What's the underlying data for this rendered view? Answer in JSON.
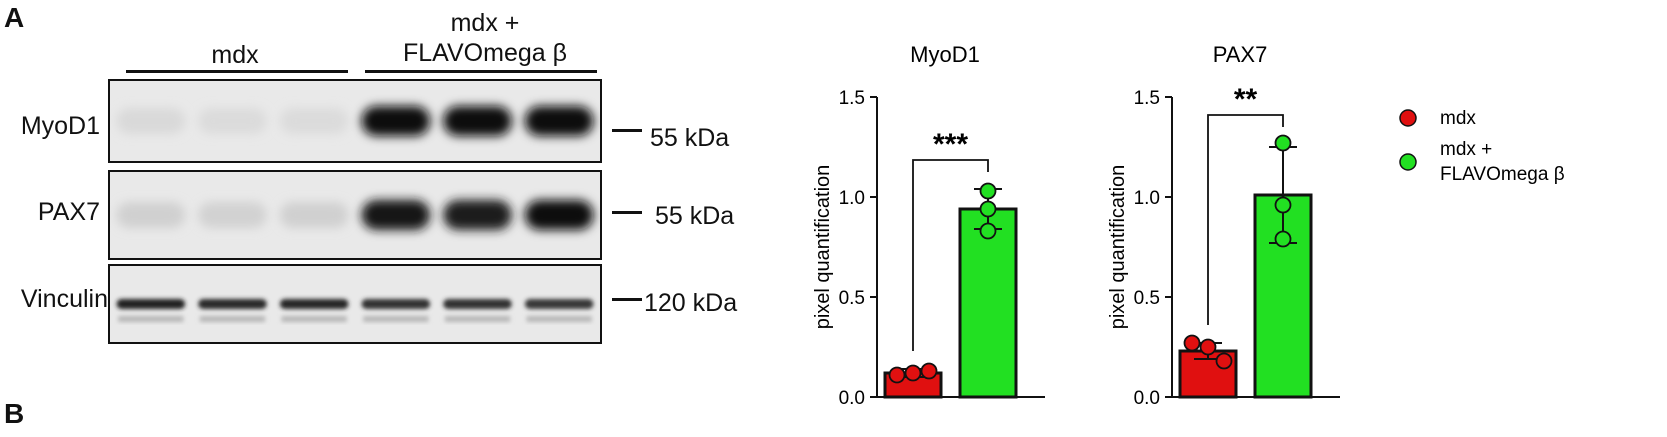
{
  "panel_labels": {
    "a": "A",
    "b": "B"
  },
  "blot": {
    "group_labels": [
      "mdx",
      "mdx +\nFLAVOmega β"
    ],
    "rows": [
      {
        "protein": "MyoD1",
        "size": "55 kDa",
        "intensity": [
          0.08,
          0.07,
          0.07,
          0.98,
          0.97,
          0.98
        ]
      },
      {
        "protein": "PAX7",
        "size": "55 kDa",
        "intensity": [
          0.12,
          0.11,
          0.12,
          0.95,
          0.93,
          0.97
        ]
      },
      {
        "protein": "Vinculin",
        "size": "120 kDa",
        "intensity": [
          0.9,
          0.85,
          0.88,
          0.82,
          0.83,
          0.8
        ]
      }
    ]
  },
  "legend": {
    "items": [
      {
        "label": "mdx",
        "color": "#e01010"
      },
      {
        "label": "mdx +\nFLAVOmega β",
        "color": "#22e022"
      }
    ]
  },
  "chart_data": [
    {
      "type": "bar",
      "title": "MyoD1",
      "ylabel": "pixel quantification",
      "ylim": [
        0,
        1.5
      ],
      "yticks": [
        "0.0",
        "0.5",
        "1.0",
        "1.5"
      ],
      "categories": [
        "mdx",
        "mdx + FLAVOmega β"
      ],
      "values": [
        0.12,
        0.94
      ],
      "errors": [
        0.02,
        0.1
      ],
      "points": [
        [
          0.11,
          0.12,
          0.13
        ],
        [
          1.03,
          0.94,
          0.83
        ]
      ],
      "colors": [
        "#e01010",
        "#22e022"
      ],
      "significance": "***"
    },
    {
      "type": "bar",
      "title": "PAX7",
      "ylabel": "pixel quantification",
      "ylim": [
        0,
        1.5
      ],
      "yticks": [
        "0.0",
        "0.5",
        "1.0",
        "1.5"
      ],
      "categories": [
        "mdx",
        "mdx + FLAVOmega β"
      ],
      "values": [
        0.23,
        1.01
      ],
      "errors": [
        0.04,
        0.24
      ],
      "points": [
        [
          0.27,
          0.25,
          0.18
        ],
        [
          1.27,
          0.96,
          0.79
        ]
      ],
      "colors": [
        "#e01010",
        "#22e022"
      ],
      "significance": "**"
    }
  ]
}
